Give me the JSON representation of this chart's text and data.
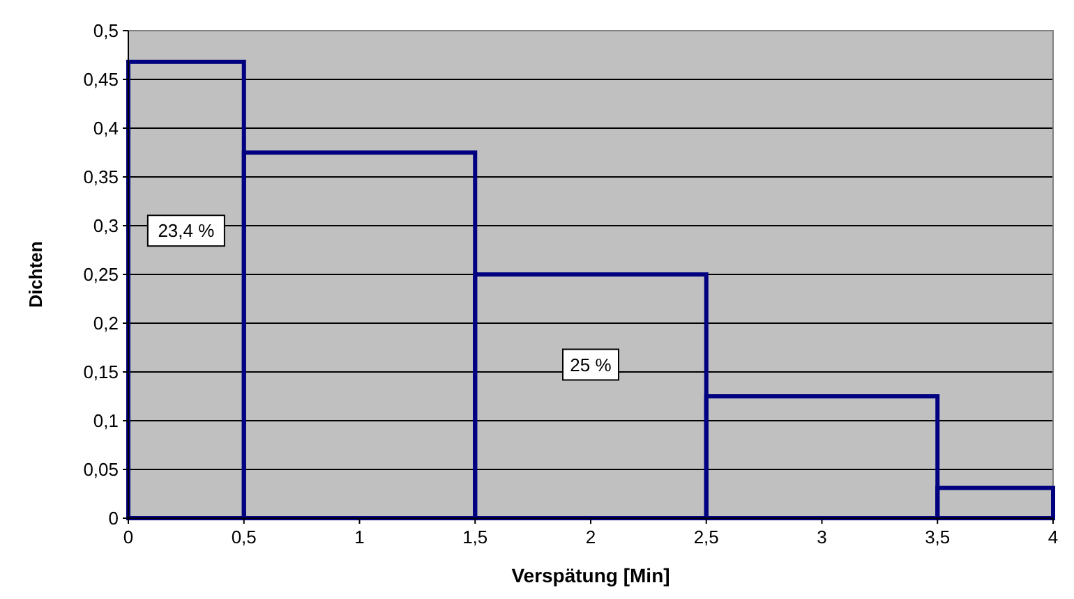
{
  "chart_data": {
    "type": "histogram",
    "xlabel": "Verspätung [Min]",
    "ylabel": "Dichten",
    "bins": [
      0,
      0.5,
      1.5,
      2.5,
      3.5,
      4
    ],
    "values": [
      0.468,
      0.375,
      0.25,
      0.125,
      0.031
    ],
    "color": "#000080",
    "xlim": [
      0,
      4
    ],
    "xticks": [
      0,
      {
        "value": 0.5,
        "label": "0,5"
      },
      1,
      {
        "value": 1.5,
        "label": "1,5"
      },
      2,
      {
        "value": 2.5,
        "label": "2,5"
      },
      3,
      {
        "value": 3.5,
        "label": "3,5"
      },
      4
    ],
    "ylim": [
      0,
      0.5
    ],
    "yticks": [
      0,
      {
        "value": 0.05,
        "label": "0,05"
      },
      {
        "value": 0.1,
        "label": "0,1"
      },
      {
        "value": 0.15,
        "label": "0,15"
      },
      {
        "value": 0.2,
        "label": "0,2"
      },
      {
        "value": 0.25,
        "label": "0,25"
      },
      {
        "value": 0.3,
        "label": "0,3"
      },
      {
        "value": 0.35,
        "label": "0,35"
      },
      {
        "value": 0.4,
        "label": "0,4"
      },
      {
        "value": 0.45,
        "label": "0,45"
      },
      {
        "value": 0.5,
        "label": "0,5"
      }
    ],
    "grid": "y",
    "annotations": [
      "23,4 %",
      "25 %"
    ]
  }
}
